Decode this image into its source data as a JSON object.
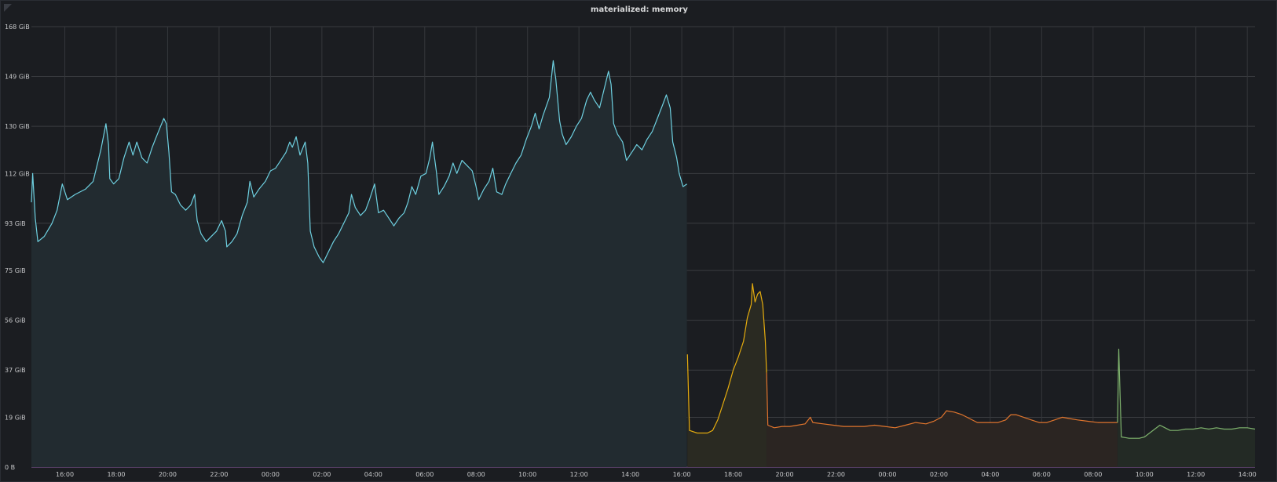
{
  "panel": {
    "title": "materialized: memory"
  },
  "chart_data": {
    "type": "area",
    "title": "materialized: memory",
    "ylabel": "",
    "xlabel": "",
    "y_unit": "GiB",
    "ylim": [
      0,
      168
    ],
    "y_tick_values": [
      0,
      19,
      37,
      56,
      75,
      93,
      112,
      130,
      149,
      168
    ],
    "y_tick_labels": [
      "0 B",
      "19 GiB",
      "37 GiB",
      "56 GiB",
      "75 GiB",
      "93 GiB",
      "112 GiB",
      "130 GiB",
      "149 GiB",
      "168 GiB"
    ],
    "xlim_hours": [
      14.7,
      62.3
    ],
    "x_tick_hours": [
      16,
      18,
      20,
      22,
      24,
      26,
      28,
      30,
      32,
      34,
      36,
      38,
      40,
      42,
      44,
      46,
      48,
      50,
      52,
      54,
      56,
      58,
      60,
      62
    ],
    "x_tick_labels": [
      "16:00",
      "18:00",
      "20:00",
      "22:00",
      "00:00",
      "02:00",
      "04:00",
      "06:00",
      "08:00",
      "10:00",
      "12:00",
      "14:00",
      "16:00",
      "18:00",
      "20:00",
      "22:00",
      "00:00",
      "02:00",
      "04:00",
      "06:00",
      "08:00",
      "10:00",
      "12:00",
      "14:00"
    ],
    "grid": true,
    "legend": "none",
    "series": [
      {
        "color": "#6ed0e0",
        "fill": "#222b30",
        "points": [
          [
            14.7,
            101
          ],
          [
            14.75,
            112
          ],
          [
            14.85,
            95
          ],
          [
            14.95,
            86
          ],
          [
            15.2,
            88
          ],
          [
            15.5,
            93
          ],
          [
            15.7,
            98
          ],
          [
            15.9,
            108
          ],
          [
            16.1,
            102
          ],
          [
            16.4,
            104
          ],
          [
            16.8,
            106
          ],
          [
            17.1,
            109
          ],
          [
            17.4,
            121
          ],
          [
            17.6,
            131
          ],
          [
            17.7,
            123
          ],
          [
            17.75,
            110
          ],
          [
            17.9,
            108
          ],
          [
            18.1,
            110
          ],
          [
            18.3,
            118
          ],
          [
            18.5,
            124
          ],
          [
            18.65,
            119
          ],
          [
            18.8,
            124
          ],
          [
            19.0,
            118
          ],
          [
            19.2,
            116
          ],
          [
            19.4,
            122
          ],
          [
            19.6,
            127
          ],
          [
            19.85,
            133
          ],
          [
            19.95,
            131
          ],
          [
            20.05,
            120
          ],
          [
            20.15,
            105
          ],
          [
            20.3,
            104
          ],
          [
            20.5,
            100
          ],
          [
            20.7,
            98
          ],
          [
            20.9,
            100
          ],
          [
            21.05,
            104
          ],
          [
            21.15,
            94
          ],
          [
            21.3,
            89
          ],
          [
            21.5,
            86
          ],
          [
            21.7,
            88
          ],
          [
            21.9,
            90
          ],
          [
            22.1,
            94
          ],
          [
            22.25,
            90
          ],
          [
            22.3,
            84
          ],
          [
            22.5,
            86
          ],
          [
            22.7,
            89
          ],
          [
            22.9,
            96
          ],
          [
            23.1,
            101
          ],
          [
            23.2,
            109
          ],
          [
            23.35,
            103
          ],
          [
            23.55,
            106
          ],
          [
            23.8,
            109
          ],
          [
            24.0,
            113
          ],
          [
            24.2,
            114
          ],
          [
            24.4,
            117
          ],
          [
            24.6,
            120
          ],
          [
            24.75,
            124
          ],
          [
            24.85,
            122
          ],
          [
            25.0,
            126
          ],
          [
            25.15,
            119
          ],
          [
            25.35,
            124
          ],
          [
            25.45,
            116
          ],
          [
            25.55,
            90
          ],
          [
            25.7,
            84
          ],
          [
            25.9,
            80
          ],
          [
            26.05,
            78
          ],
          [
            26.25,
            82
          ],
          [
            26.45,
            86
          ],
          [
            26.65,
            89
          ],
          [
            26.85,
            93
          ],
          [
            27.05,
            97
          ],
          [
            27.15,
            104
          ],
          [
            27.3,
            99
          ],
          [
            27.5,
            96
          ],
          [
            27.7,
            98
          ],
          [
            27.85,
            102
          ],
          [
            28.05,
            108
          ],
          [
            28.2,
            97
          ],
          [
            28.4,
            98
          ],
          [
            28.6,
            95
          ],
          [
            28.8,
            92
          ],
          [
            29.0,
            95
          ],
          [
            29.2,
            97
          ],
          [
            29.35,
            101
          ],
          [
            29.5,
            107
          ],
          [
            29.65,
            104
          ],
          [
            29.85,
            111
          ],
          [
            30.05,
            112
          ],
          [
            30.2,
            118
          ],
          [
            30.3,
            124
          ],
          [
            30.45,
            113
          ],
          [
            30.55,
            104
          ],
          [
            30.75,
            107
          ],
          [
            30.95,
            111
          ],
          [
            31.1,
            116
          ],
          [
            31.25,
            112
          ],
          [
            31.45,
            117
          ],
          [
            31.65,
            115
          ],
          [
            31.85,
            113
          ],
          [
            32.0,
            107
          ],
          [
            32.1,
            102
          ],
          [
            32.3,
            106
          ],
          [
            32.5,
            109
          ],
          [
            32.65,
            114
          ],
          [
            32.8,
            105
          ],
          [
            33.0,
            104
          ],
          [
            33.15,
            108
          ],
          [
            33.35,
            112
          ],
          [
            33.55,
            116
          ],
          [
            33.75,
            119
          ],
          [
            33.95,
            125
          ],
          [
            34.15,
            130
          ],
          [
            34.3,
            135
          ],
          [
            34.45,
            129
          ],
          [
            34.6,
            134
          ],
          [
            34.85,
            141
          ],
          [
            35.0,
            155
          ],
          [
            35.1,
            148
          ],
          [
            35.25,
            132
          ],
          [
            35.35,
            127
          ],
          [
            35.5,
            123
          ],
          [
            35.7,
            126
          ],
          [
            35.9,
            130
          ],
          [
            36.1,
            133
          ],
          [
            36.3,
            140
          ],
          [
            36.45,
            143
          ],
          [
            36.6,
            140
          ],
          [
            36.8,
            137
          ],
          [
            36.95,
            143
          ],
          [
            37.15,
            151
          ],
          [
            37.25,
            146
          ],
          [
            37.35,
            131
          ],
          [
            37.5,
            127
          ],
          [
            37.7,
            124
          ],
          [
            37.85,
            117
          ],
          [
            38.05,
            120
          ],
          [
            38.25,
            123
          ],
          [
            38.45,
            121
          ],
          [
            38.65,
            125
          ],
          [
            38.85,
            128
          ],
          [
            39.05,
            133
          ],
          [
            39.25,
            138
          ],
          [
            39.4,
            142
          ],
          [
            39.55,
            137
          ],
          [
            39.65,
            124
          ],
          [
            39.8,
            118
          ],
          [
            39.9,
            112
          ],
          [
            40.05,
            107
          ],
          [
            40.2,
            108
          ]
        ]
      },
      {
        "color": "#e5ac0e",
        "fill": "#2a2a22",
        "points": [
          [
            40.22,
            43
          ],
          [
            40.3,
            14
          ],
          [
            40.6,
            13
          ],
          [
            41.0,
            13
          ],
          [
            41.2,
            14
          ],
          [
            41.4,
            18
          ],
          [
            41.6,
            24
          ],
          [
            41.8,
            30
          ],
          [
            42.0,
            37
          ],
          [
            42.2,
            42
          ],
          [
            42.4,
            48
          ],
          [
            42.55,
            57
          ],
          [
            42.7,
            62
          ],
          [
            42.75,
            70
          ],
          [
            42.85,
            63
          ],
          [
            42.95,
            66
          ],
          [
            43.05,
            67
          ],
          [
            43.15,
            62
          ],
          [
            43.25,
            48
          ],
          [
            43.3,
            36
          ]
        ]
      },
      {
        "color": "#e0752d",
        "fill": "#2b2522",
        "points": [
          [
            43.3,
            36
          ],
          [
            43.35,
            16
          ],
          [
            43.6,
            15
          ],
          [
            43.9,
            15.5
          ],
          [
            44.2,
            15.5
          ],
          [
            44.5,
            16
          ],
          [
            44.8,
            16.5
          ],
          [
            45.0,
            19
          ],
          [
            45.1,
            17
          ],
          [
            45.5,
            16.5
          ],
          [
            45.9,
            16
          ],
          [
            46.3,
            15.5
          ],
          [
            46.7,
            15.5
          ],
          [
            47.1,
            15.5
          ],
          [
            47.5,
            16
          ],
          [
            47.9,
            15.5
          ],
          [
            48.3,
            15
          ],
          [
            48.7,
            16
          ],
          [
            49.1,
            17
          ],
          [
            49.5,
            16.5
          ],
          [
            49.8,
            17.5
          ],
          [
            50.1,
            19
          ],
          [
            50.3,
            21.5
          ],
          [
            50.6,
            21
          ],
          [
            50.9,
            20
          ],
          [
            51.2,
            18.5
          ],
          [
            51.5,
            17
          ],
          [
            51.9,
            17
          ],
          [
            52.3,
            17
          ],
          [
            52.6,
            18
          ],
          [
            52.8,
            20
          ],
          [
            53.0,
            20
          ],
          [
            53.3,
            19
          ],
          [
            53.6,
            18
          ],
          [
            53.9,
            17
          ],
          [
            54.2,
            17
          ],
          [
            54.5,
            18
          ],
          [
            54.8,
            19
          ],
          [
            55.1,
            18.5
          ],
          [
            55.4,
            18
          ],
          [
            55.8,
            17.5
          ],
          [
            56.2,
            17
          ],
          [
            56.6,
            17
          ],
          [
            56.95,
            17
          ]
        ]
      },
      {
        "color": "#7eb26d",
        "fill": "#232a25",
        "points": [
          [
            56.95,
            17
          ],
          [
            57.0,
            45
          ],
          [
            57.1,
            11.5
          ],
          [
            57.4,
            11
          ],
          [
            57.8,
            11
          ],
          [
            58.0,
            11.5
          ],
          [
            58.2,
            13
          ],
          [
            58.4,
            14.5
          ],
          [
            58.6,
            16
          ],
          [
            58.8,
            15
          ],
          [
            59.0,
            14
          ],
          [
            59.3,
            14
          ],
          [
            59.6,
            14.5
          ],
          [
            59.9,
            14.5
          ],
          [
            60.2,
            15
          ],
          [
            60.5,
            14.5
          ],
          [
            60.8,
            15
          ],
          [
            61.1,
            14.5
          ],
          [
            61.4,
            14.5
          ],
          [
            61.7,
            15
          ],
          [
            62.0,
            15
          ],
          [
            62.3,
            14.5
          ]
        ]
      }
    ]
  }
}
